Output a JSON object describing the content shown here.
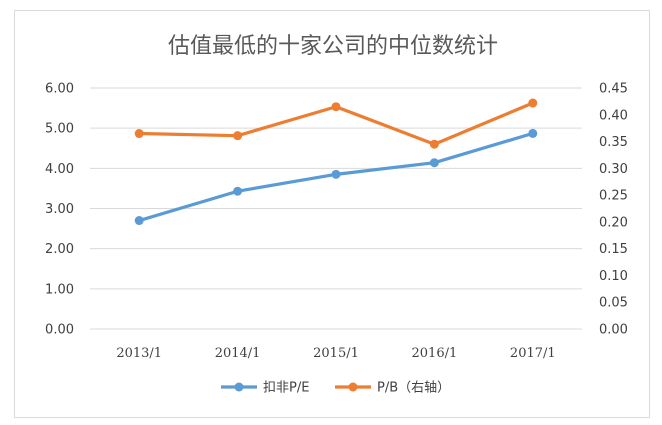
{
  "chart_data": {
    "type": "line",
    "title": "估值最低的十家公司的中位数统计",
    "categories": [
      "2013/1",
      "2014/1",
      "2015/1",
      "2016/1",
      "2017/1"
    ],
    "series": [
      {
        "name": "扣非P/E",
        "axis": "left",
        "color": "#5b9bd5",
        "values": [
          2.7,
          3.43,
          3.85,
          4.14,
          4.87
        ]
      },
      {
        "name": "P/B（右轴）",
        "axis": "right",
        "color": "#ed7d31",
        "values": [
          0.365,
          0.361,
          0.415,
          0.345,
          0.422
        ]
      }
    ],
    "left_axis": {
      "ylim": [
        0,
        6
      ],
      "ticks": [
        "0.00",
        "1.00",
        "2.00",
        "3.00",
        "4.00",
        "5.00",
        "6.00"
      ]
    },
    "right_axis": {
      "ylim": [
        0,
        0.45
      ],
      "ticks": [
        "0.00",
        "0.05",
        "0.10",
        "0.15",
        "0.20",
        "0.25",
        "0.30",
        "0.35",
        "0.40",
        "0.45"
      ]
    },
    "grid": true,
    "legend": "bottom-center"
  }
}
